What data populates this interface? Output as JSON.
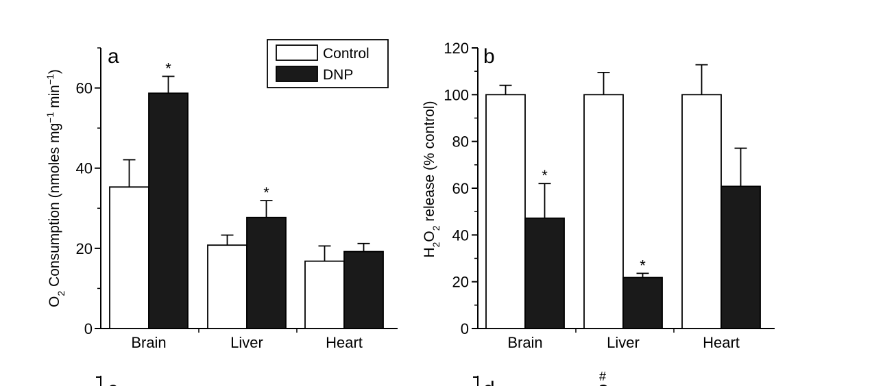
{
  "chart_data": [
    {
      "type": "bar",
      "panel": "a",
      "ylabel": "O2 Consumption (nmoles mg-1 min-1)",
      "ylabel_parts": {
        "pre": "O",
        "sub": "2",
        "mid": " Consumption (nmoles mg",
        "sup1": "−1",
        "mid2": " min",
        "sup2": "−1",
        "post": ")"
      },
      "ylim": [
        0,
        70
      ],
      "yticks": [
        0,
        20,
        40,
        60
      ],
      "minor_step": 10,
      "categories": [
        "Brain",
        "Liver",
        "Heart"
      ],
      "series": [
        {
          "name": "Control",
          "color": "#ffffff",
          "values": [
            35.3,
            20.8,
            16.8
          ],
          "errors": [
            6.8,
            2.5,
            3.8
          ]
        },
        {
          "name": "DNP",
          "color": "#1a1a1a",
          "values": [
            58.7,
            27.7,
            19.2
          ],
          "errors": [
            4.2,
            4.2,
            2.0
          ]
        }
      ],
      "significance": [
        {
          "category": 0,
          "series": 1,
          "label": "*"
        },
        {
          "category": 1,
          "series": 1,
          "label": "*"
        }
      ],
      "legend": [
        "Control",
        "DNP"
      ],
      "legend_position": "top-right"
    },
    {
      "type": "bar",
      "panel": "b",
      "ylabel": "H2O2 release (% control)",
      "ylabel_parts": {
        "pre": "H",
        "sub1": "2",
        "mid": "O",
        "sub2": "2",
        "post": " release (% control)"
      },
      "ylim": [
        0,
        120
      ],
      "yticks": [
        0,
        20,
        40,
        60,
        80,
        100,
        120
      ],
      "minor_step": 10,
      "categories": [
        "Brain",
        "Liver",
        "Heart"
      ],
      "series": [
        {
          "name": "Control",
          "color": "#ffffff",
          "values": [
            100,
            100,
            100
          ],
          "errors": [
            4,
            9.5,
            12.8
          ]
        },
        {
          "name": "DNP",
          "color": "#1a1a1a",
          "values": [
            47.2,
            21.8,
            60.8
          ],
          "errors": [
            14.8,
            1.8,
            16.3
          ]
        }
      ],
      "significance": [
        {
          "category": 0,
          "series": 1,
          "label": "*"
        },
        {
          "category": 1,
          "series": 1,
          "label": "*"
        }
      ]
    }
  ],
  "partial_panels": {
    "c_label": "c",
    "d_label": "d",
    "d_mark": "#"
  }
}
